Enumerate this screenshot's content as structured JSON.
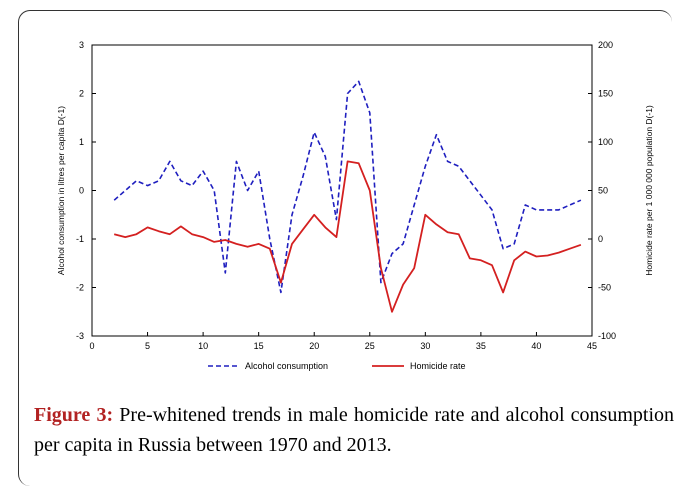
{
  "chart_data": {
    "type": "line",
    "title": "",
    "xlabel": "",
    "ylabel": "Alcohol consumption in litres per capita D(-1)",
    "y2label": "Homicide rate per 1 000 000 population D(-1)",
    "xlim": [
      0,
      45
    ],
    "ylim": [
      -3,
      3
    ],
    "y2lim": [
      -100,
      200
    ],
    "xticks": [
      "0",
      "5",
      "10",
      "15",
      "20",
      "25",
      "30",
      "35",
      "40",
      "45"
    ],
    "yticks": [
      "-3",
      "-2",
      "-1",
      "0",
      "1",
      "2",
      "3"
    ],
    "y2ticks": [
      "-100",
      "-50",
      "0",
      "50",
      "100",
      "150",
      "200"
    ],
    "grid": false,
    "legend_position": "bottom",
    "series": [
      {
        "name": "Alcohol consumption",
        "axis": "left",
        "color": "#1f1fbf",
        "style": "dashed",
        "x": [
          2,
          3,
          4,
          5,
          6,
          7,
          8,
          9,
          10,
          11,
          12,
          13,
          14,
          15,
          16,
          17,
          18,
          19,
          20,
          21,
          22,
          23,
          24,
          25,
          26,
          27,
          28,
          29,
          30,
          31,
          32,
          33,
          34,
          35,
          36,
          37,
          38,
          39,
          40,
          41,
          42,
          43,
          44
        ],
        "values": [
          -0.2,
          0.0,
          0.2,
          0.1,
          0.2,
          0.6,
          0.2,
          0.1,
          0.4,
          0.0,
          -1.7,
          0.6,
          0.0,
          0.4,
          -1.0,
          -2.1,
          -0.5,
          0.3,
          1.2,
          0.7,
          -0.6,
          2.0,
          2.25,
          1.6,
          -1.9,
          -1.3,
          -1.1,
          -0.3,
          0.5,
          1.15,
          0.6,
          0.5,
          0.2,
          -0.1,
          -0.4,
          -1.2,
          -1.1,
          -0.3,
          -0.4,
          -0.4,
          -0.4,
          -0.3,
          -0.2
        ]
      },
      {
        "name": "Homicide rate",
        "axis": "right",
        "color": "#d42020",
        "style": "solid",
        "x": [
          2,
          3,
          4,
          5,
          6,
          7,
          8,
          9,
          10,
          11,
          12,
          13,
          14,
          15,
          16,
          17,
          18,
          19,
          20,
          21,
          22,
          23,
          24,
          25,
          26,
          27,
          28,
          29,
          30,
          31,
          32,
          33,
          34,
          35,
          36,
          37,
          38,
          39,
          40,
          41,
          42,
          43,
          44
        ],
        "values": [
          5,
          2,
          5,
          12,
          8,
          5,
          13,
          5,
          2,
          -3,
          -1,
          -5,
          -8,
          -5,
          -10,
          -45,
          -5,
          10,
          25,
          12,
          2,
          80,
          78,
          50,
          -30,
          -75,
          -47,
          -30,
          25,
          15,
          7,
          5,
          -20,
          -22,
          -27,
          -55,
          -22,
          -13,
          -18,
          -17,
          -14,
          -10,
          -6
        ]
      }
    ]
  }
}
